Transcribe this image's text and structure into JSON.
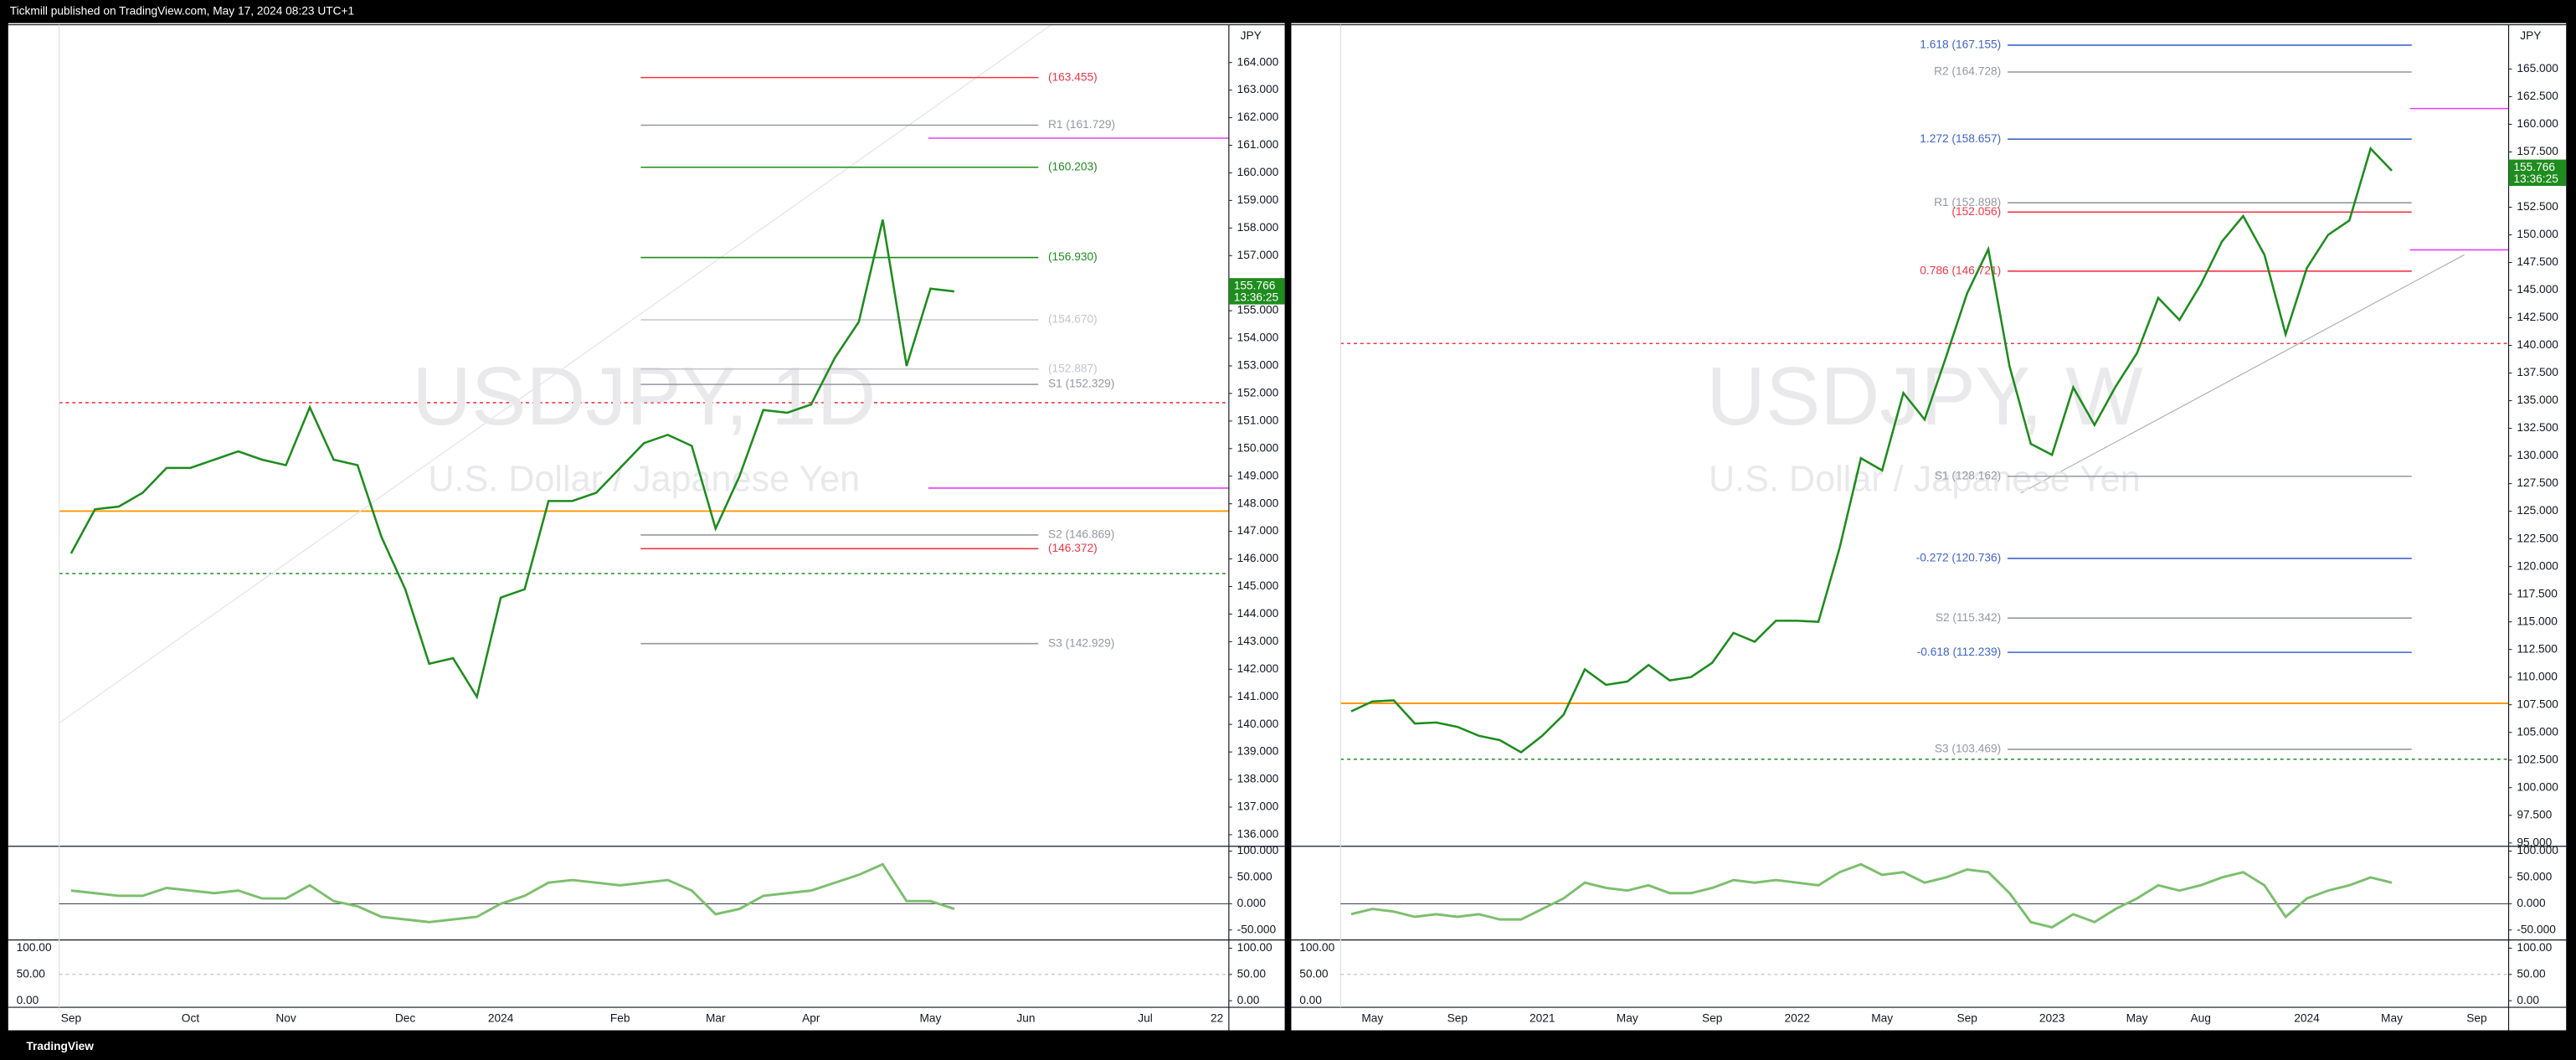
{
  "header": {
    "text": "Tickmill published on TradingView.com, May 17, 2024 08:23 UTC+1"
  },
  "footer": {
    "brand": "TradingView"
  },
  "chart_data": [
    {
      "type": "line",
      "title": "USDJPY, 1D",
      "subtitle": "U.S. Dollar / Japanese Yen",
      "axis_unit": "JPY",
      "grid": false,
      "categories": [
        "Sep",
        null,
        null,
        null,
        null,
        "Oct",
        null,
        null,
        null,
        "Nov",
        null,
        null,
        null,
        null,
        "Dec",
        null,
        null,
        null,
        "2024",
        null,
        null,
        null,
        null,
        "Feb",
        null,
        null,
        null,
        "Mar",
        null,
        null,
        null,
        "Apr",
        null,
        null,
        null,
        null,
        "May",
        null,
        null,
        null,
        "Jun",
        null,
        null,
        null,
        null,
        "Jul",
        null,
        null,
        "22"
      ],
      "values": [
        146.2,
        147.8,
        147.9,
        148.4,
        149.3,
        149.3,
        149.6,
        149.9,
        149.6,
        149.4,
        151.5,
        149.6,
        149.4,
        146.8,
        144.9,
        142.2,
        142.4,
        141.0,
        144.6,
        144.9,
        148.1,
        148.1,
        148.4,
        149.3,
        150.2,
        150.5,
        150.1,
        147.1,
        149.0,
        151.4,
        151.3,
        151.6,
        153.3,
        154.6,
        158.3,
        153.0,
        155.8,
        155.7,
        null,
        null,
        null,
        null,
        null,
        null,
        null,
        null,
        null,
        null,
        null
      ],
      "color": "#1e8c1e",
      "ylim": [
        135.58,
        165.37
      ],
      "yticks": [
        {
          "value": 136,
          "label": "136.000"
        },
        {
          "value": 137,
          "label": "137.000"
        },
        {
          "value": 138,
          "label": "138.000"
        },
        {
          "value": 139,
          "label": "139.000"
        },
        {
          "value": 140,
          "label": "140.000"
        },
        {
          "value": 141,
          "label": "141.000"
        },
        {
          "value": 142,
          "label": "142.000"
        },
        {
          "value": 143,
          "label": "143.000"
        },
        {
          "value": 144,
          "label": "144.000"
        },
        {
          "value": 145,
          "label": "145.000"
        },
        {
          "value": 146,
          "label": "146.000"
        },
        {
          "value": 147,
          "label": "147.000"
        },
        {
          "value": 148,
          "label": "148.000"
        },
        {
          "value": 149,
          "label": "149.000"
        },
        {
          "value": 150,
          "label": "150.000"
        },
        {
          "value": 151,
          "label": "151.000"
        },
        {
          "value": 152,
          "label": "152.000"
        },
        {
          "value": 153,
          "label": "153.000"
        },
        {
          "value": 154,
          "label": "154.000"
        },
        {
          "value": 155,
          "label": "155.000"
        },
        {
          "value": 156,
          "label": "156.000"
        },
        {
          "value": 157,
          "label": "157.000"
        },
        {
          "value": 158,
          "label": "158.000"
        },
        {
          "value": 159,
          "label": "159.000"
        },
        {
          "value": 160,
          "label": "160.000"
        },
        {
          "value": 161,
          "label": "161.000"
        },
        {
          "value": 162,
          "label": "162.000"
        },
        {
          "value": 163,
          "label": "163.000"
        },
        {
          "value": 164,
          "label": "164.000"
        }
      ],
      "levels": [
        {
          "label": "(163.455)",
          "value": 163.455,
          "color": "#f23645"
        },
        {
          "label": "R1 (161.729)",
          "value": 161.729,
          "color": "#9598a1"
        },
        {
          "label": "(160.203)",
          "value": 160.203,
          "color": "#1e8c1e"
        },
        {
          "label": "(156.930)",
          "value": 156.93,
          "color": "#1e8c1e"
        },
        {
          "label": "(154.670)",
          "value": 154.67,
          "color": "#c4c6cc"
        },
        {
          "label": "(152.887)",
          "value": 152.887,
          "color": "#c4c6cc"
        },
        {
          "label": "S1 (152.329)",
          "value": 152.329,
          "color": "#9598a1"
        },
        {
          "label": "S2 (146.869)",
          "value": 146.869,
          "color": "#9598a1"
        },
        {
          "label": "(146.372)",
          "value": 146.372,
          "color": "#f23645"
        },
        {
          "label": "S3 (142.929)",
          "value": 142.929,
          "color": "#9598a1"
        }
      ],
      "last_price": {
        "value": 155.766,
        "label": "155.766"
      },
      "countdown": "13:36:25",
      "oscillator": {
        "ylim": [
          -69,
          103
        ],
        "yticks": [
          {
            "value": 100,
            "label": "100.000"
          },
          {
            "value": 50,
            "label": "50.000"
          },
          {
            "value": 0,
            "label": "0.000"
          },
          {
            "value": -50,
            "label": "-50.000"
          }
        ],
        "color": "#7cbf6e",
        "values": [
          25,
          20,
          15,
          15,
          30,
          25,
          20,
          25,
          10,
          10,
          35,
          5,
          -5,
          -25,
          -30,
          -35,
          -30,
          -25,
          0,
          15,
          40,
          45,
          40,
          35,
          40,
          45,
          25,
          -20,
          -10,
          15,
          20,
          25,
          40,
          55,
          75,
          5,
          5,
          -10,
          null,
          null,
          null,
          null,
          null,
          null,
          null,
          null,
          null,
          null,
          null
        ]
      },
      "stochastic": {
        "ylim": [
          -12.5,
          112.5
        ],
        "yticks": [
          {
            "value": 100,
            "label": "100.00"
          },
          {
            "value": 50,
            "label": "50.00"
          },
          {
            "value": 0,
            "label": "0.00"
          }
        ]
      }
    },
    {
      "type": "line",
      "title": "USDJPY, W",
      "subtitle": "U.S. Dollar / Japanese Yen",
      "axis_unit": "JPY",
      "grid": false,
      "categories": [
        null,
        "May",
        null,
        null,
        null,
        "Sep",
        null,
        null,
        null,
        "2021",
        null,
        null,
        null,
        "May",
        null,
        null,
        null,
        "Sep",
        null,
        null,
        null,
        "2022",
        null,
        null,
        null,
        "May",
        null,
        null,
        null,
        "Sep",
        null,
        null,
        null,
        "2023",
        null,
        null,
        null,
        "May",
        null,
        null,
        "Aug",
        null,
        null,
        null,
        null,
        "2024",
        null,
        null,
        null,
        "May",
        null,
        null,
        null,
        "Sep",
        null
      ],
      "values": [
        106.9,
        107.8,
        107.9,
        105.8,
        105.9,
        105.5,
        104.7,
        104.3,
        103.2,
        104.7,
        106.6,
        110.7,
        109.3,
        109.6,
        111.1,
        109.7,
        110.0,
        111.3,
        114.0,
        113.2,
        115.1,
        115.1,
        115.0,
        121.7,
        129.8,
        128.7,
        135.7,
        133.3,
        138.9,
        144.7,
        148.7,
        138.1,
        131.1,
        130.1,
        136.2,
        132.8,
        136.3,
        139.3,
        144.3,
        142.3,
        145.5,
        149.4,
        151.7,
        148.2,
        141.0,
        147.0,
        150.0,
        151.3,
        157.8,
        155.8,
        null,
        null,
        null,
        null,
        null
      ],
      "color": "#1e8c1e",
      "ylim": [
        94.7,
        169.0
      ],
      "yticks": [
        {
          "value": 95,
          "label": "95.000"
        },
        {
          "value": 97.5,
          "label": "97.500"
        },
        {
          "value": 100,
          "label": "100.000"
        },
        {
          "value": 102.5,
          "label": "102.500"
        },
        {
          "value": 105,
          "label": "105.000"
        },
        {
          "value": 107.5,
          "label": "107.500"
        },
        {
          "value": 110,
          "label": "110.000"
        },
        {
          "value": 112.5,
          "label": "112.500"
        },
        {
          "value": 115,
          "label": "115.000"
        },
        {
          "value": 117.5,
          "label": "117.500"
        },
        {
          "value": 120,
          "label": "120.000"
        },
        {
          "value": 122.5,
          "label": "122.500"
        },
        {
          "value": 125,
          "label": "125.000"
        },
        {
          "value": 127.5,
          "label": "127.500"
        },
        {
          "value": 130,
          "label": "130.000"
        },
        {
          "value": 132.5,
          "label": "132.500"
        },
        {
          "value": 135,
          "label": "135.000"
        },
        {
          "value": 137.5,
          "label": "137.500"
        },
        {
          "value": 140,
          "label": "140.000"
        },
        {
          "value": 142.5,
          "label": "142.500"
        },
        {
          "value": 145,
          "label": "145.000"
        },
        {
          "value": 147.5,
          "label": "147.500"
        },
        {
          "value": 150,
          "label": "150.000"
        },
        {
          "value": 152.5,
          "label": "152.500"
        },
        {
          "value": 155,
          "label": "155.000"
        },
        {
          "value": 157.5,
          "label": "157.500"
        },
        {
          "value": 160,
          "label": "160.000"
        },
        {
          "value": 162.5,
          "label": "162.500"
        },
        {
          "value": 165,
          "label": "165.000"
        }
      ],
      "levels": [
        {
          "label": "1.618 (167.155)",
          "value": 167.155,
          "color": "#3f63c9"
        },
        {
          "label": "R2 (164.728)",
          "value": 164.728,
          "color": "#9598a1"
        },
        {
          "label": "1.272 (158.657)",
          "value": 158.657,
          "color": "#3f63c9"
        },
        {
          "label": "R1 (152.898)",
          "value": 152.898,
          "color": "#9598a1"
        },
        {
          "label": "(152.056)",
          "value": 152.056,
          "color": "#f23645"
        },
        {
          "label": "0.786 (146.721)",
          "value": 146.721,
          "color": "#f23645"
        },
        {
          "label": "S1 (128.162)",
          "value": 128.162,
          "color": "#9598a1"
        },
        {
          "label": "-0.272 (120.736)",
          "value": 120.736,
          "color": "#3f63c9"
        },
        {
          "label": "S2 (115.342)",
          "value": 115.342,
          "color": "#9598a1"
        },
        {
          "label": "-0.618 (112.239)",
          "value": 112.239,
          "color": "#3f63c9"
        },
        {
          "label": "S3 (103.469)",
          "value": 103.469,
          "color": "#9598a1"
        }
      ],
      "last_price": {
        "value": 155.766,
        "label": "155.766"
      },
      "countdown": "13:36:25",
      "oscillator": {
        "ylim": [
          -69,
          103
        ],
        "yticks": [
          {
            "value": 100,
            "label": "100.000"
          },
          {
            "value": 50,
            "label": "50.000"
          },
          {
            "value": 0,
            "label": "0.000"
          },
          {
            "value": -50,
            "label": "-50.000"
          }
        ],
        "color": "#7cbf6e",
        "values": [
          -20,
          -10,
          -15,
          -25,
          -20,
          -25,
          -20,
          -30,
          -30,
          -10,
          10,
          40,
          30,
          25,
          35,
          20,
          20,
          30,
          45,
          40,
          45,
          40,
          35,
          60,
          75,
          55,
          60,
          40,
          50,
          65,
          60,
          20,
          -35,
          -45,
          -20,
          -35,
          -10,
          10,
          35,
          25,
          35,
          50,
          60,
          35,
          -25,
          10,
          25,
          35,
          50,
          40,
          null,
          null,
          null,
          null,
          null
        ]
      },
      "stochastic": {
        "ylim": [
          -12.5,
          112.5
        ],
        "yticks": [
          {
            "value": 100,
            "label": "100.00"
          },
          {
            "value": 50,
            "label": "50.00"
          },
          {
            "value": 0,
            "label": "0.00"
          }
        ]
      }
    }
  ]
}
